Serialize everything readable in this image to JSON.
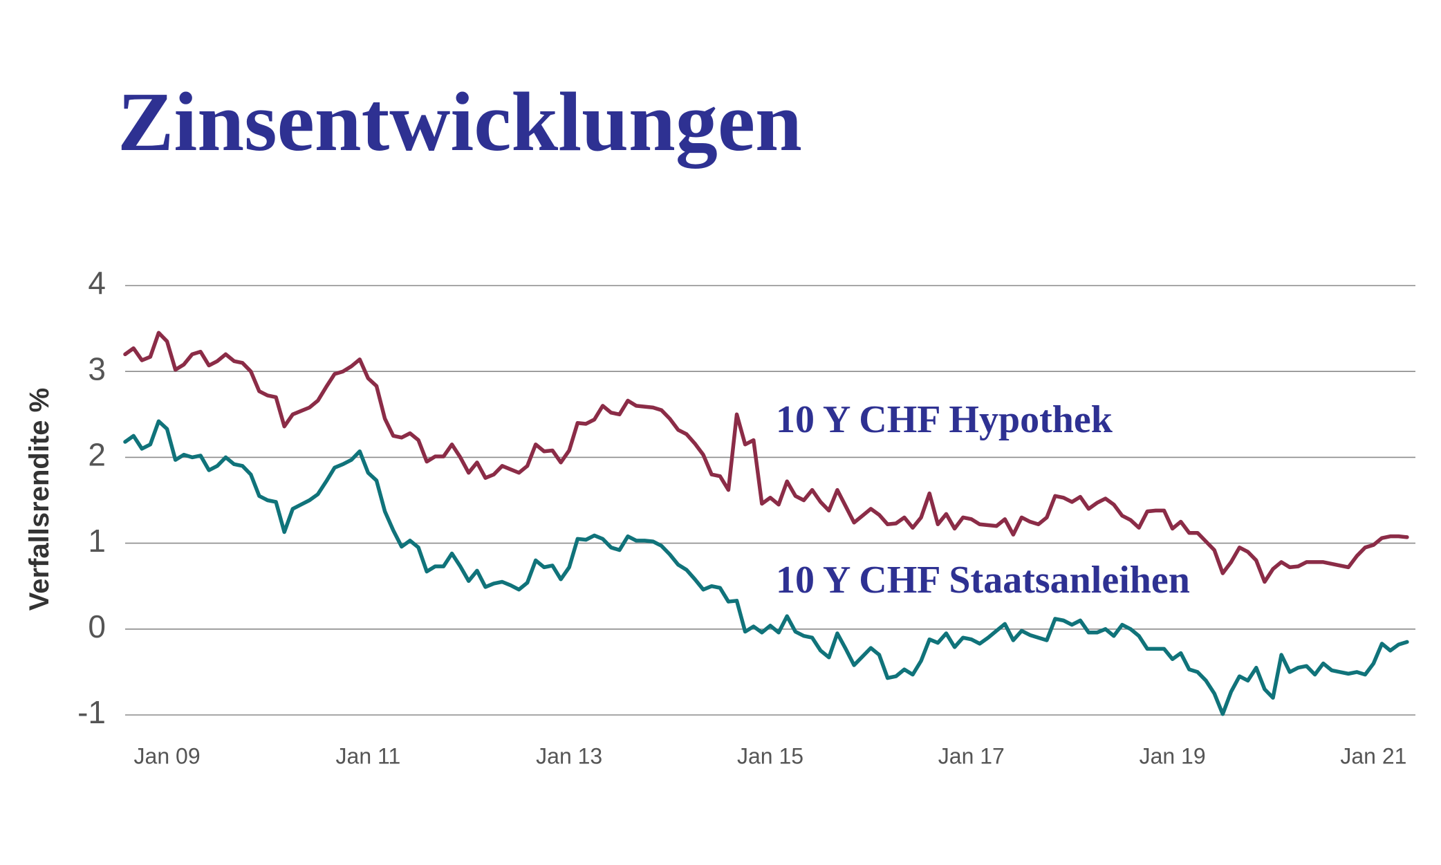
{
  "chart_data": {
    "type": "line",
    "title": "Zinsentwicklungen",
    "y_label": "Verfallsrendite %",
    "grid": true,
    "ylim": [
      -1,
      4
    ],
    "yticks": [
      4,
      3,
      2,
      1,
      0,
      -1
    ],
    "xlim": [
      "2008-08",
      "2021-06"
    ],
    "xticks": [
      {
        "value": "2009-01",
        "label": "Jan 09"
      },
      {
        "value": "2011-01",
        "label": "Jan 11"
      },
      {
        "value": "2013-01",
        "label": "Jan 13"
      },
      {
        "value": "2015-01",
        "label": "Jan 15"
      },
      {
        "value": "2017-01",
        "label": "Jan 17"
      },
      {
        "value": "2019-01",
        "label": "Jan 19"
      },
      {
        "value": "2021-01",
        "label": "Jan 21"
      }
    ],
    "x": [
      "2008-08",
      "2008-09",
      "2008-10",
      "2008-11",
      "2008-12",
      "2009-01",
      "2009-02",
      "2009-03",
      "2009-04",
      "2009-05",
      "2009-06",
      "2009-07",
      "2009-08",
      "2009-09",
      "2009-10",
      "2009-11",
      "2009-12",
      "2010-01",
      "2010-02",
      "2010-03",
      "2010-04",
      "2010-05",
      "2010-06",
      "2010-07",
      "2010-08",
      "2010-09",
      "2010-10",
      "2010-11",
      "2010-12",
      "2011-01",
      "2011-02",
      "2011-03",
      "2011-04",
      "2011-05",
      "2011-06",
      "2011-07",
      "2011-08",
      "2011-09",
      "2011-10",
      "2011-11",
      "2011-12",
      "2012-01",
      "2012-02",
      "2012-03",
      "2012-04",
      "2012-05",
      "2012-06",
      "2012-07",
      "2012-08",
      "2012-09",
      "2012-10",
      "2012-11",
      "2012-12",
      "2013-01",
      "2013-02",
      "2013-03",
      "2013-04",
      "2013-05",
      "2013-06",
      "2013-07",
      "2013-08",
      "2013-09",
      "2013-10",
      "2013-11",
      "2013-12",
      "2014-01",
      "2014-02",
      "2014-03",
      "2014-04",
      "2014-05",
      "2014-06",
      "2014-07",
      "2014-08",
      "2014-09",
      "2014-10",
      "2014-11",
      "2014-12",
      "2015-01",
      "2015-02",
      "2015-03",
      "2015-04",
      "2015-05",
      "2015-06",
      "2015-07",
      "2015-08",
      "2015-09",
      "2015-10",
      "2015-11",
      "2015-12",
      "2016-01",
      "2016-02",
      "2016-03",
      "2016-04",
      "2016-05",
      "2016-06",
      "2016-07",
      "2016-08",
      "2016-09",
      "2016-10",
      "2016-11",
      "2016-12",
      "2017-01",
      "2017-02",
      "2017-03",
      "2017-04",
      "2017-05",
      "2017-06",
      "2017-07",
      "2017-08",
      "2017-09",
      "2017-10",
      "2017-11",
      "2017-12",
      "2018-01",
      "2018-02",
      "2018-03",
      "2018-04",
      "2018-05",
      "2018-06",
      "2018-07",
      "2018-08",
      "2018-09",
      "2018-10",
      "2018-11",
      "2018-12",
      "2019-01",
      "2019-02",
      "2019-03",
      "2019-04",
      "2019-05",
      "2019-06",
      "2019-07",
      "2019-08",
      "2019-09",
      "2019-10",
      "2019-11",
      "2019-12",
      "2020-01",
      "2020-02",
      "2020-03",
      "2020-04",
      "2020-05",
      "2020-06",
      "2020-07",
      "2020-08",
      "2020-09",
      "2020-10",
      "2020-11",
      "2020-12",
      "2021-01",
      "2021-02",
      "2021-03",
      "2021-04",
      "2021-05"
    ],
    "series": [
      {
        "name": "10 Y CHF Hypothek",
        "color": "#8b2c47",
        "values": [
          3.2,
          3.27,
          3.13,
          3.17,
          3.45,
          3.35,
          3.02,
          3.08,
          3.2,
          3.23,
          3.07,
          3.12,
          3.2,
          3.12,
          3.1,
          3.0,
          2.77,
          2.72,
          2.7,
          2.36,
          2.5,
          2.54,
          2.58,
          2.66,
          2.82,
          2.97,
          3.0,
          3.06,
          3.14,
          2.92,
          2.83,
          2.45,
          2.25,
          2.23,
          2.28,
          2.2,
          1.95,
          2.01,
          2.01,
          2.15,
          2.0,
          1.82,
          1.94,
          1.76,
          1.8,
          1.9,
          1.86,
          1.82,
          1.9,
          2.15,
          2.07,
          2.08,
          1.94,
          2.08,
          2.4,
          2.39,
          2.44,
          2.6,
          2.52,
          2.5,
          2.66,
          2.6,
          2.59,
          2.58,
          2.55,
          2.45,
          2.32,
          2.27,
          2.16,
          2.03,
          1.8,
          1.78,
          1.62,
          2.5,
          2.15,
          2.2,
          1.46,
          1.53,
          1.45,
          1.72,
          1.55,
          1.5,
          1.62,
          1.48,
          1.38,
          1.62,
          1.43,
          1.24,
          1.32,
          1.4,
          1.33,
          1.22,
          1.23,
          1.3,
          1.18,
          1.3,
          1.58,
          1.22,
          1.34,
          1.17,
          1.3,
          1.28,
          1.22,
          1.21,
          1.2,
          1.28,
          1.1,
          1.3,
          1.25,
          1.22,
          1.3,
          1.55,
          1.53,
          1.48,
          1.54,
          1.4,
          1.47,
          1.52,
          1.45,
          1.32,
          1.27,
          1.18,
          1.37,
          1.38,
          1.38,
          1.17,
          1.25,
          1.12,
          1.12,
          1.02,
          0.92,
          0.65,
          0.78,
          0.95,
          0.9,
          0.8,
          0.55,
          0.7,
          0.78,
          0.72,
          0.73,
          0.78,
          0.78,
          0.78,
          0.76,
          0.74,
          0.72,
          0.85,
          0.95,
          0.98,
          1.06,
          1.08,
          1.08,
          1.07
        ]
      },
      {
        "name": "10 Y CHF Staatsanleihen",
        "color": "#10737a",
        "values": [
          2.18,
          2.25,
          2.1,
          2.15,
          2.42,
          2.33,
          1.97,
          2.03,
          2.0,
          2.02,
          1.85,
          1.9,
          2.0,
          1.92,
          1.9,
          1.8,
          1.55,
          1.5,
          1.48,
          1.13,
          1.4,
          1.45,
          1.5,
          1.57,
          1.72,
          1.88,
          1.92,
          1.97,
          2.07,
          1.82,
          1.73,
          1.37,
          1.15,
          0.96,
          1.03,
          0.95,
          0.67,
          0.73,
          0.73,
          0.88,
          0.73,
          0.56,
          0.68,
          0.49,
          0.53,
          0.55,
          0.51,
          0.46,
          0.54,
          0.8,
          0.72,
          0.74,
          0.58,
          0.72,
          1.05,
          1.04,
          1.09,
          1.05,
          0.95,
          0.92,
          1.08,
          1.03,
          1.03,
          1.02,
          0.97,
          0.87,
          0.75,
          0.69,
          0.58,
          0.46,
          0.5,
          0.48,
          0.32,
          0.33,
          -0.03,
          0.03,
          -0.04,
          0.04,
          -0.04,
          0.15,
          -0.03,
          -0.08,
          -0.1,
          -0.25,
          -0.33,
          -0.05,
          -0.23,
          -0.42,
          -0.32,
          -0.22,
          -0.3,
          -0.57,
          -0.55,
          -0.47,
          -0.53,
          -0.37,
          -0.12,
          -0.16,
          -0.05,
          -0.21,
          -0.1,
          -0.12,
          -0.17,
          -0.1,
          -0.02,
          0.06,
          -0.13,
          -0.02,
          -0.07,
          -0.1,
          -0.13,
          0.12,
          0.1,
          0.05,
          0.1,
          -0.04,
          -0.04,
          0.0,
          -0.08,
          0.05,
          0.0,
          -0.08,
          -0.23,
          -0.23,
          -0.23,
          -0.35,
          -0.28,
          -0.47,
          -0.5,
          -0.6,
          -0.75,
          -0.99,
          -0.73,
          -0.55,
          -0.6,
          -0.45,
          -0.7,
          -0.8,
          -0.3,
          -0.5,
          -0.45,
          -0.43,
          -0.53,
          -0.4,
          -0.48,
          -0.5,
          -0.52,
          -0.5,
          -0.53,
          -0.4,
          -0.17,
          -0.25,
          -0.18,
          -0.15
        ]
      }
    ]
  }
}
